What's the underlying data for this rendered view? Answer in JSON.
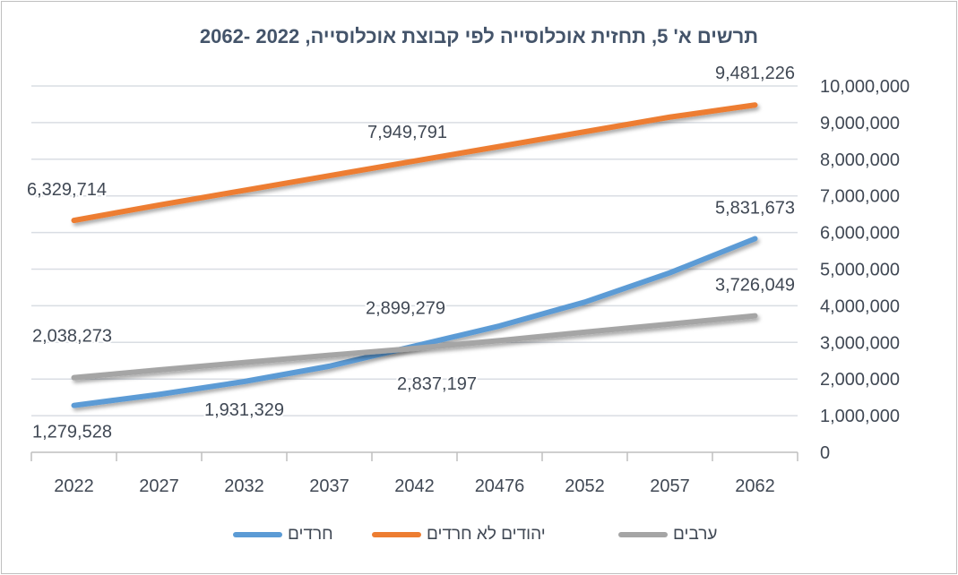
{
  "chart_data": {
    "type": "line",
    "title": "תרשים א' 5, תחזית אוכלוסייה לפי קבוצת אוכלוסייה, 2022 -2062",
    "categories": [
      "2022",
      "2027",
      "2032",
      "2037",
      "2042",
      "20476",
      "2052",
      "2057",
      "2062"
    ],
    "ylim": [
      0,
      10000000
    ],
    "yticks": [
      "0",
      "1,000,000",
      "2,000,000",
      "3,000,000",
      "4,000,000",
      "5,000,000",
      "6,000,000",
      "7,000,000",
      "8,000,000",
      "9,000,000",
      "10,000,000"
    ],
    "grid": true,
    "legend_position": "bottom",
    "series": [
      {
        "name": "חרדים",
        "color": "#5b9bd5",
        "values": [
          1279528,
          1580000,
          1931329,
          2350000,
          2899279,
          3450000,
          4100000,
          4900000,
          5831673
        ]
      },
      {
        "name": "יהודים לא חרדים",
        "color": "#ed7d31",
        "values": [
          6329714,
          6750000,
          7150000,
          7550000,
          7949791,
          8350000,
          8750000,
          9150000,
          9481226
        ]
      },
      {
        "name": "ערבים",
        "color": "#a5a5a5",
        "values": [
          2038273,
          2250000,
          2450000,
          2650000,
          2837197,
          3050000,
          3280000,
          3500000,
          3726049
        ]
      }
    ],
    "data_labels": [
      {
        "series": 1,
        "index": 0,
        "text": "6,329,714"
      },
      {
        "series": 1,
        "index": 4,
        "text": "7,949,791"
      },
      {
        "series": 1,
        "index": 8,
        "text": "9,481,226"
      },
      {
        "series": 0,
        "index": 8,
        "text": "5,831,673"
      },
      {
        "series": 2,
        "index": 8,
        "text": "3,726,049"
      },
      {
        "series": 2,
        "index": 0,
        "text": "2,038,273"
      },
      {
        "series": 0,
        "index": 0,
        "text": "1,279,528"
      },
      {
        "series": 0,
        "index": 2,
        "text": "1,931,329"
      },
      {
        "series": 0,
        "index": 4,
        "text": "2,899,279"
      },
      {
        "series": 2,
        "index": 4,
        "text": "2,837,197"
      }
    ]
  }
}
